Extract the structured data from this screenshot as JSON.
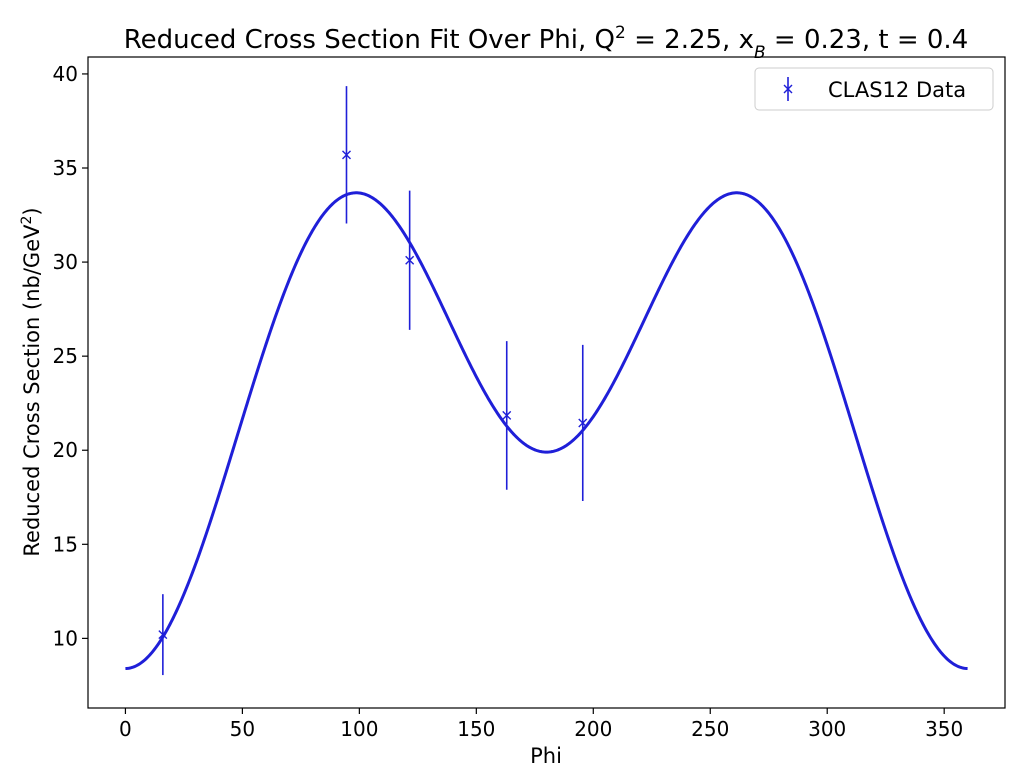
{
  "chart_data": {
    "type": "scatter",
    "title_main": "Reduced Cross Section Fit Over Phi, Q",
    "title_q_sup": "2",
    "title_mid": " = 2.25, x",
    "title_x_sub": "B",
    "title_end": " = 0.23, t = 0.4",
    "xlabel": "Phi",
    "ylabel_main": "Reduced Cross Section (nb/GeV",
    "ylabel_sup": "2",
    "ylabel_end": ")",
    "xlim": [
      -16,
      376
    ],
    "ylim": [
      6.3,
      40.9
    ],
    "xticks": [
      0,
      50,
      100,
      150,
      200,
      250,
      300,
      350
    ],
    "yticks": [
      10,
      15,
      20,
      25,
      30,
      35,
      40
    ],
    "grid": false,
    "legend_position": "top-right",
    "colors": {
      "series": "#1f1fd8",
      "axes": "#000000",
      "background": "#ffffff"
    },
    "series": [
      {
        "name": "CLAS12 Data",
        "kind": "errorbar",
        "marker": "x",
        "x": [
          16,
          94.5,
          121.5,
          163,
          195.5
        ],
        "y": [
          10.2,
          35.7,
          30.1,
          21.85,
          21.45
        ],
        "yerr": [
          2.15,
          3.65,
          3.7,
          3.95,
          4.15
        ]
      },
      {
        "kind": "fit-curve",
        "description_in_legend": false,
        "x_range": [
          0,
          360
        ],
        "model": "y = A + B*cos(phi) + C*cos(2*phi)",
        "params": {
          "A": 23.7,
          "B": -5.75,
          "C": -9.55
        }
      }
    ]
  }
}
